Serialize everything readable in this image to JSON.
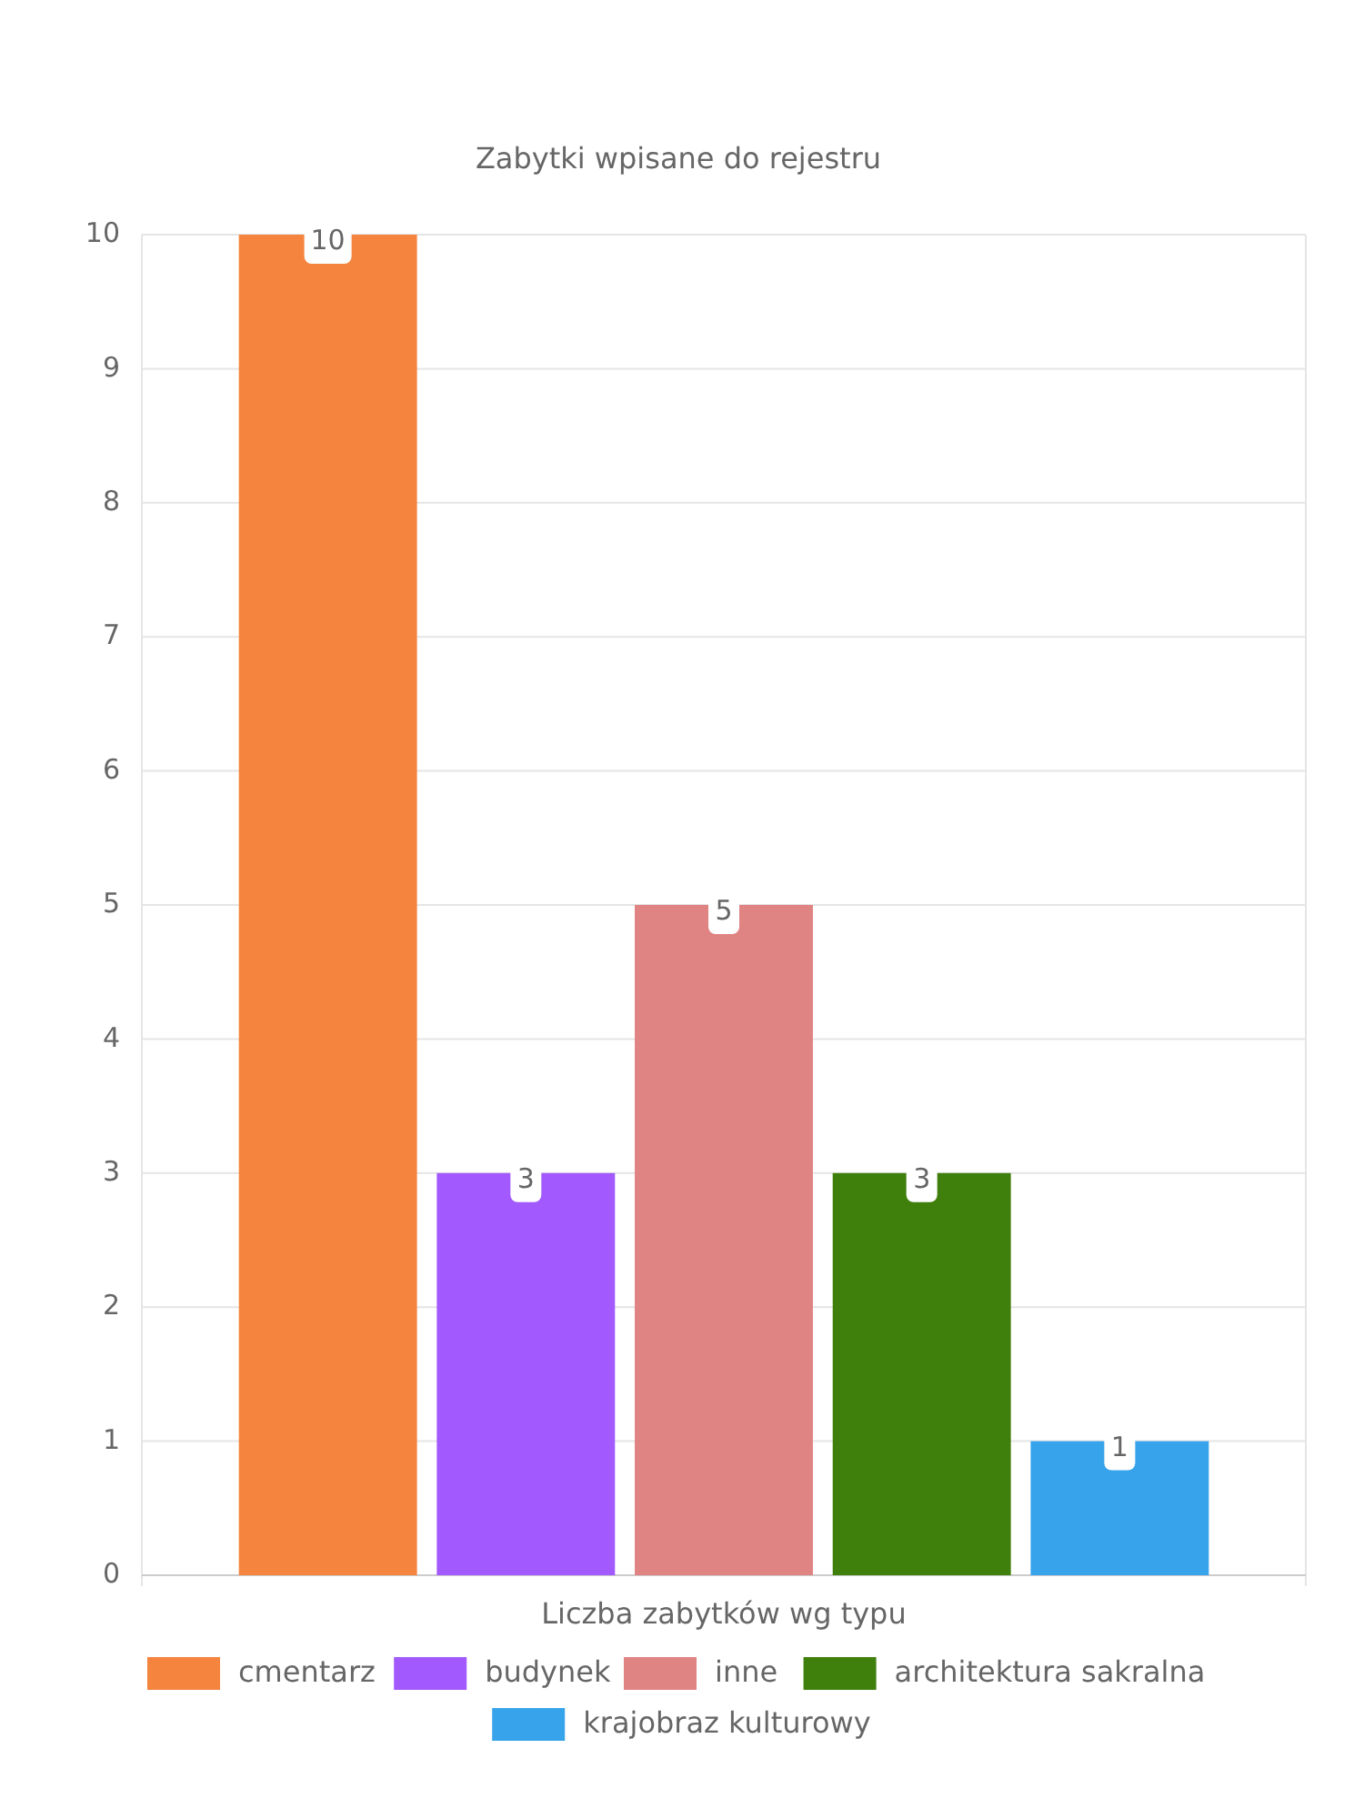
{
  "chart_data": {
    "type": "bar",
    "title": "Zabytki wpisane do rejestru",
    "categories": [
      "Liczba zabytków wg typu"
    ],
    "series": [
      {
        "name": "cmentarz",
        "color": "#f5843f",
        "values": [
          10
        ]
      },
      {
        "name": "budynek",
        "color": "#a259fd",
        "values": [
          3
        ]
      },
      {
        "name": "inne",
        "color": "#e08383",
        "values": [
          5
        ]
      },
      {
        "name": "architektura sakralna",
        "color": "#3f7f0c",
        "values": [
          3
        ]
      },
      {
        "name": "krajobraz kulturowy",
        "color": "#37a3eb",
        "values": [
          1
        ]
      }
    ],
    "ylim": [
      0,
      10
    ],
    "yticks": [
      0,
      1,
      2,
      3,
      4,
      5,
      6,
      7,
      8,
      9,
      10
    ],
    "grid": true,
    "legend": "bottom",
    "data_labels": true
  }
}
